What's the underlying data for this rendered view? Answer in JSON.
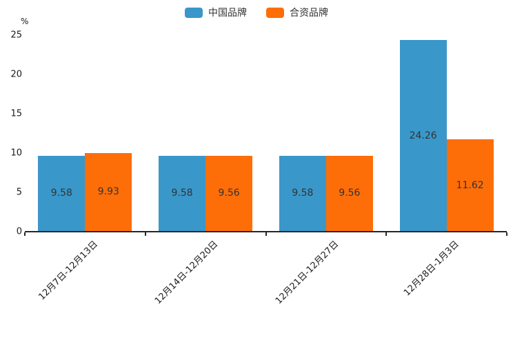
{
  "chart_data": {
    "type": "bar",
    "title": "",
    "unit_label": "%",
    "categories": [
      "12月7日-12月13日",
      "12月14日-12月20日",
      "12月21日-12月27日",
      "12月28日-1月3日"
    ],
    "series": [
      {
        "name": "中国品牌",
        "color": "#3a97c9",
        "values": [
          9.58,
          9.58,
          9.58,
          24.26
        ]
      },
      {
        "name": "合资品牌",
        "color": "#fd6e08",
        "values": [
          9.93,
          9.56,
          9.56,
          11.62
        ]
      }
    ],
    "ylim": [
      0,
      25
    ],
    "yticks": [
      0,
      5,
      10,
      15,
      20,
      25
    ],
    "grid": false,
    "legend_position": "top-center",
    "axis_color": "#262626",
    "bar_label_color": "#333333",
    "bar_labels_visible": true
  }
}
